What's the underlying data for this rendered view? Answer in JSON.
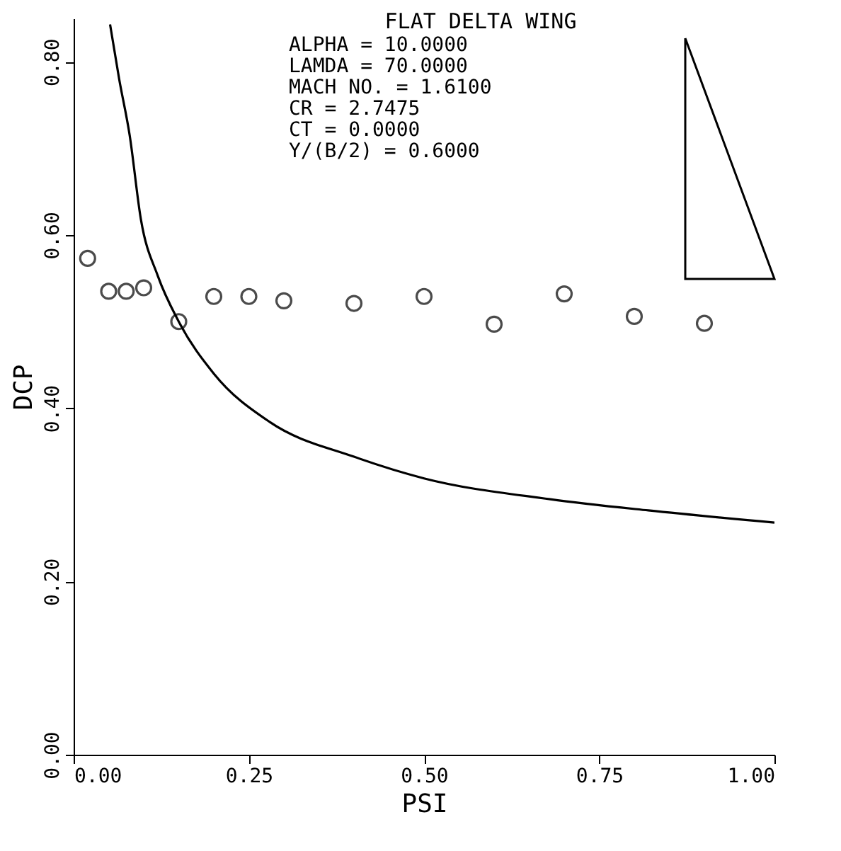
{
  "chart_data": {
    "type": "scatter",
    "title": "FLAT DELTA WING",
    "xlabel": "PSI",
    "ylabel": "DCP",
    "annotations": [
      "ALPHA = 10.0000",
      "LAMDA = 70.0000",
      "MACH NO. = 1.6100",
      "CR = 2.7475",
      "CT = 0.0000",
      "Y/(B/2) = 0.6000"
    ],
    "series": [
      {
        "marker": "circle",
        "color": "#000000",
        "x": [
          0.02,
          0.05,
          0.075,
          0.1,
          0.15,
          0.2,
          0.25,
          0.3,
          0.4,
          0.5,
          0.6,
          0.7,
          0.8,
          0.9
        ],
        "values": [
          0.573,
          0.535,
          0.535,
          0.539,
          0.5,
          0.529,
          0.529,
          0.524,
          0.521,
          0.529,
          0.497,
          0.532,
          0.506,
          0.498
        ]
      },
      {
        "type": "line",
        "color": "#000000",
        "x": [
          0.052,
          0.065,
          0.08,
          0.096,
          0.12,
          0.15,
          0.2,
          0.28,
          0.4,
          0.5,
          0.68,
          0.82,
          1.0
        ],
        "values": [
          0.843,
          0.78,
          0.715,
          0.618,
          0.553,
          0.5,
          0.44,
          0.384,
          0.344,
          0.319,
          0.295,
          0.282,
          0.268
        ]
      }
    ],
    "xlim": [
      0,
      1
    ],
    "ylim": [
      0,
      0.85
    ],
    "xticks": [
      {
        "value": 0,
        "label": "0.00"
      },
      0.25,
      {
        "value": 0.5,
        "label": "0.50"
      },
      0.75,
      {
        "value": 1,
        "label": "1.00"
      }
    ],
    "yticks": [
      {
        "value": 0,
        "label": "0.00"
      },
      {
        "value": 0.2,
        "label": "0.20"
      },
      {
        "value": 0.4,
        "label": "0.40"
      },
      {
        "value": 0.6,
        "label": "0.60"
      },
      {
        "value": 0.8,
        "label": "0.80"
      }
    ]
  }
}
